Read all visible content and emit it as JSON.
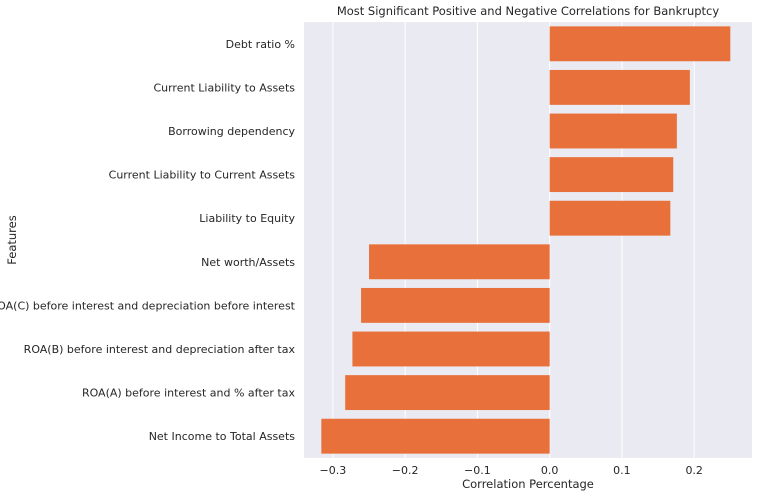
{
  "chart_data": {
    "type": "bar",
    "orientation": "horizontal",
    "title": "Most Significant Positive and Negative Correlations for Bankruptcy",
    "xlabel": "Correlation Percentage",
    "ylabel": "Features",
    "categories": [
      "Debt ratio %",
      "Current Liability to Assets",
      "Borrowing dependency",
      "Current Liability to Current Assets",
      "Liability to Equity",
      "Net worth/Assets",
      "ROA(C) before interest and depreciation before interest",
      "ROA(B) before interest and depreciation after tax",
      "ROA(A) before interest and % after tax",
      "Net Income to Total Assets"
    ],
    "values": [
      0.25,
      0.194,
      0.176,
      0.171,
      0.167,
      -0.25,
      -0.261,
      -0.273,
      -0.283,
      -0.316
    ],
    "xlim": [
      -0.34,
      0.28
    ],
    "xticks": [
      -0.3,
      -0.2,
      -0.1,
      0.0,
      0.1,
      0.2
    ],
    "xtick_labels": [
      "−0.3",
      "−0.2",
      "−0.1",
      "0.0",
      "0.1",
      "0.2"
    ],
    "grid": true,
    "colors": {
      "bar": "#e8703a",
      "background": "#eaeaf2",
      "grid": "#ffffff",
      "text": "#262626"
    }
  }
}
